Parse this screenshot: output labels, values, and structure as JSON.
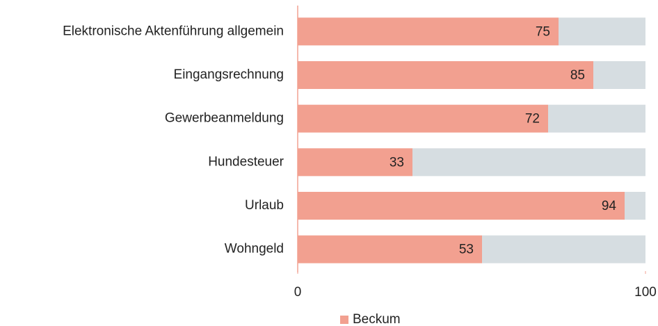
{
  "chart_data": {
    "type": "bar",
    "orientation": "horizontal",
    "categories": [
      "Elektronische Aktenführung allgemein",
      "Eingangsrechnung",
      "Gewerbeanmeldung",
      "Hundesteuer",
      "Urlaub",
      "Wohngeld"
    ],
    "series": [
      {
        "name": "Beckum",
        "color": "#f2a090",
        "values": [
          75,
          85,
          72,
          33,
          94,
          53
        ]
      }
    ],
    "xlim": [
      0,
      100
    ],
    "xticks": [
      0,
      100
    ],
    "legend": "bottom"
  }
}
